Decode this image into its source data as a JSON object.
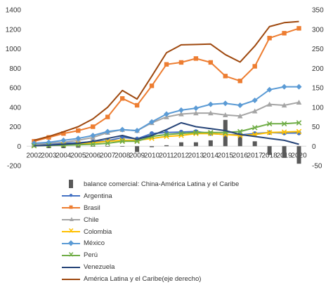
{
  "chart_data": {
    "type": "line",
    "title": "",
    "xlabel": "",
    "ylabel": "",
    "ylabel_right": "",
    "x": [
      "2002",
      "2003",
      "2004",
      "2005",
      "2006",
      "2007",
      "2008",
      "2009",
      "2010",
      "2011",
      "2012",
      "2013",
      "2014",
      "2015",
      "2016",
      "2017",
      "2018",
      "2019",
      "2020"
    ],
    "ylim_left": [
      -200,
      1400
    ],
    "yticks_left": [
      "-200",
      "0",
      "200",
      "400",
      "600",
      "800",
      "1000",
      "1200",
      "1400"
    ],
    "ylim_right": [
      -50,
      350
    ],
    "yticks_right": [
      "-50",
      "0",
      "50",
      "100",
      "150",
      "200",
      "250",
      "300",
      "350"
    ],
    "grid": false,
    "legend_position": "bottom",
    "series": [
      {
        "name": "balance comercial: China-América Latina y el Caribe",
        "kind": "bar",
        "axis": "left",
        "color": "#595959",
        "values": [
          -10,
          -20,
          -20,
          -15,
          -5,
          -5,
          -5,
          -60,
          -10,
          10,
          40,
          40,
          60,
          270,
          130,
          50,
          -90,
          -120,
          -180
        ]
      },
      {
        "name": "Argentina",
        "kind": "line",
        "axis": "left",
        "color": "#4472c4",
        "marker": "circle",
        "values": [
          20,
          25,
          30,
          35,
          45,
          55,
          90,
          75,
          130,
          140,
          145,
          150,
          130,
          120,
          115,
          130,
          140,
          135,
          135
        ]
      },
      {
        "name": "Brasil",
        "kind": "line",
        "axis": "left",
        "color": "#ed7d31",
        "marker": "square",
        "values": [
          50,
          90,
          130,
          160,
          200,
          300,
          490,
          420,
          620,
          840,
          860,
          900,
          860,
          720,
          670,
          820,
          1110,
          1160,
          1210
        ]
      },
      {
        "name": "Chile",
        "kind": "line",
        "axis": "left",
        "color": "#a5a5a5",
        "marker": "triangle",
        "values": [
          20,
          30,
          40,
          60,
          90,
          140,
          170,
          160,
          240,
          300,
          330,
          340,
          340,
          320,
          310,
          360,
          430,
          420,
          450
        ]
      },
      {
        "name": "Colombia",
        "kind": "line",
        "axis": "left",
        "color": "#ffc000",
        "marker": "x",
        "values": [
          5,
          10,
          15,
          25,
          35,
          50,
          60,
          60,
          80,
          100,
          110,
          130,
          130,
          120,
          110,
          120,
          140,
          145,
          150
        ]
      },
      {
        "name": "México",
        "kind": "line",
        "axis": "left",
        "color": "#5b9bd5",
        "marker": "diamond",
        "values": [
          30,
          40,
          60,
          80,
          110,
          150,
          170,
          160,
          250,
          330,
          370,
          390,
          430,
          440,
          420,
          470,
          580,
          610,
          610
        ]
      },
      {
        "name": "Perú",
        "kind": "line",
        "axis": "left",
        "color": "#70ad47",
        "marker": "x",
        "values": [
          5,
          8,
          10,
          15,
          20,
          30,
          50,
          50,
          100,
          120,
          130,
          140,
          140,
          140,
          150,
          190,
          230,
          230,
          240
        ]
      },
      {
        "name": "Venezuela",
        "kind": "line",
        "axis": "left",
        "color": "#264478",
        "marker": "none",
        "values": [
          5,
          10,
          20,
          30,
          50,
          80,
          110,
          70,
          110,
          170,
          240,
          200,
          180,
          160,
          120,
          100,
          80,
          60,
          20
        ]
      },
      {
        "name": "América Latina y el Caribe(eje derecho)",
        "kind": "line",
        "axis": "right",
        "color": "#9e480e",
        "marker": "none",
        "values": [
          15,
          25,
          37,
          50,
          70,
          100,
          143,
          121,
          180,
          240,
          260,
          261,
          262,
          235,
          216,
          257,
          307,
          317,
          320
        ]
      }
    ]
  }
}
